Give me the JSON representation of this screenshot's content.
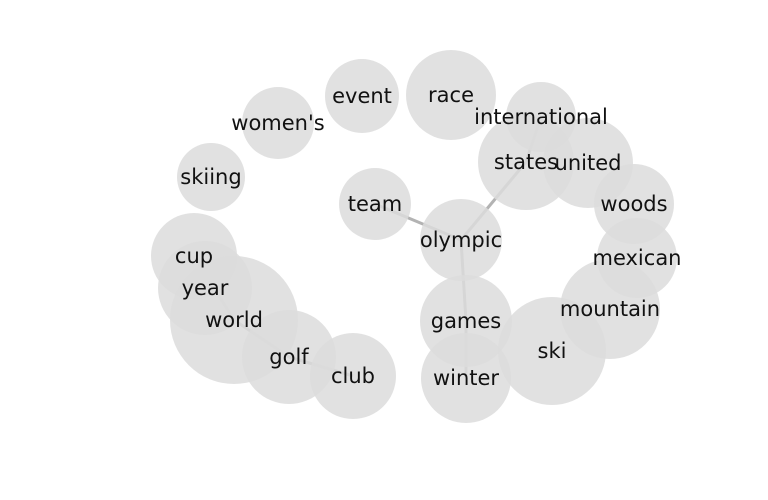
{
  "colors": {
    "node_fill": "#dcdcdc",
    "edge": "#b3b3b3",
    "label": "#111111"
  },
  "nodes": [
    {
      "id": "race",
      "label": "race"
    },
    {
      "id": "event",
      "label": "event"
    },
    {
      "id": "womens",
      "label": "women's"
    },
    {
      "id": "international",
      "label": "international"
    },
    {
      "id": "states",
      "label": "states"
    },
    {
      "id": "united",
      "label": "united"
    },
    {
      "id": "skiing",
      "label": "skiing"
    },
    {
      "id": "woods",
      "label": "woods"
    },
    {
      "id": "team",
      "label": "team"
    },
    {
      "id": "olympic",
      "label": "olympic"
    },
    {
      "id": "cup",
      "label": "cup"
    },
    {
      "id": "mexican",
      "label": "mexican"
    },
    {
      "id": "year",
      "label": "year"
    },
    {
      "id": "mountain",
      "label": "mountain"
    },
    {
      "id": "world",
      "label": "world"
    },
    {
      "id": "games",
      "label": "games"
    },
    {
      "id": "ski",
      "label": "ski"
    },
    {
      "id": "golf",
      "label": "golf"
    },
    {
      "id": "club",
      "label": "club"
    },
    {
      "id": "winter",
      "label": "winter"
    }
  ],
  "edges": [
    {
      "from": "team",
      "to": "olympic"
    },
    {
      "from": "olympic",
      "to": "states"
    },
    {
      "from": "states",
      "to": "international"
    },
    {
      "from": "olympic",
      "to": "games"
    },
    {
      "from": "games",
      "to": "winter"
    },
    {
      "from": "cup",
      "to": "world"
    },
    {
      "from": "world",
      "to": "golf"
    },
    {
      "from": "golf",
      "to": "club"
    }
  ]
}
